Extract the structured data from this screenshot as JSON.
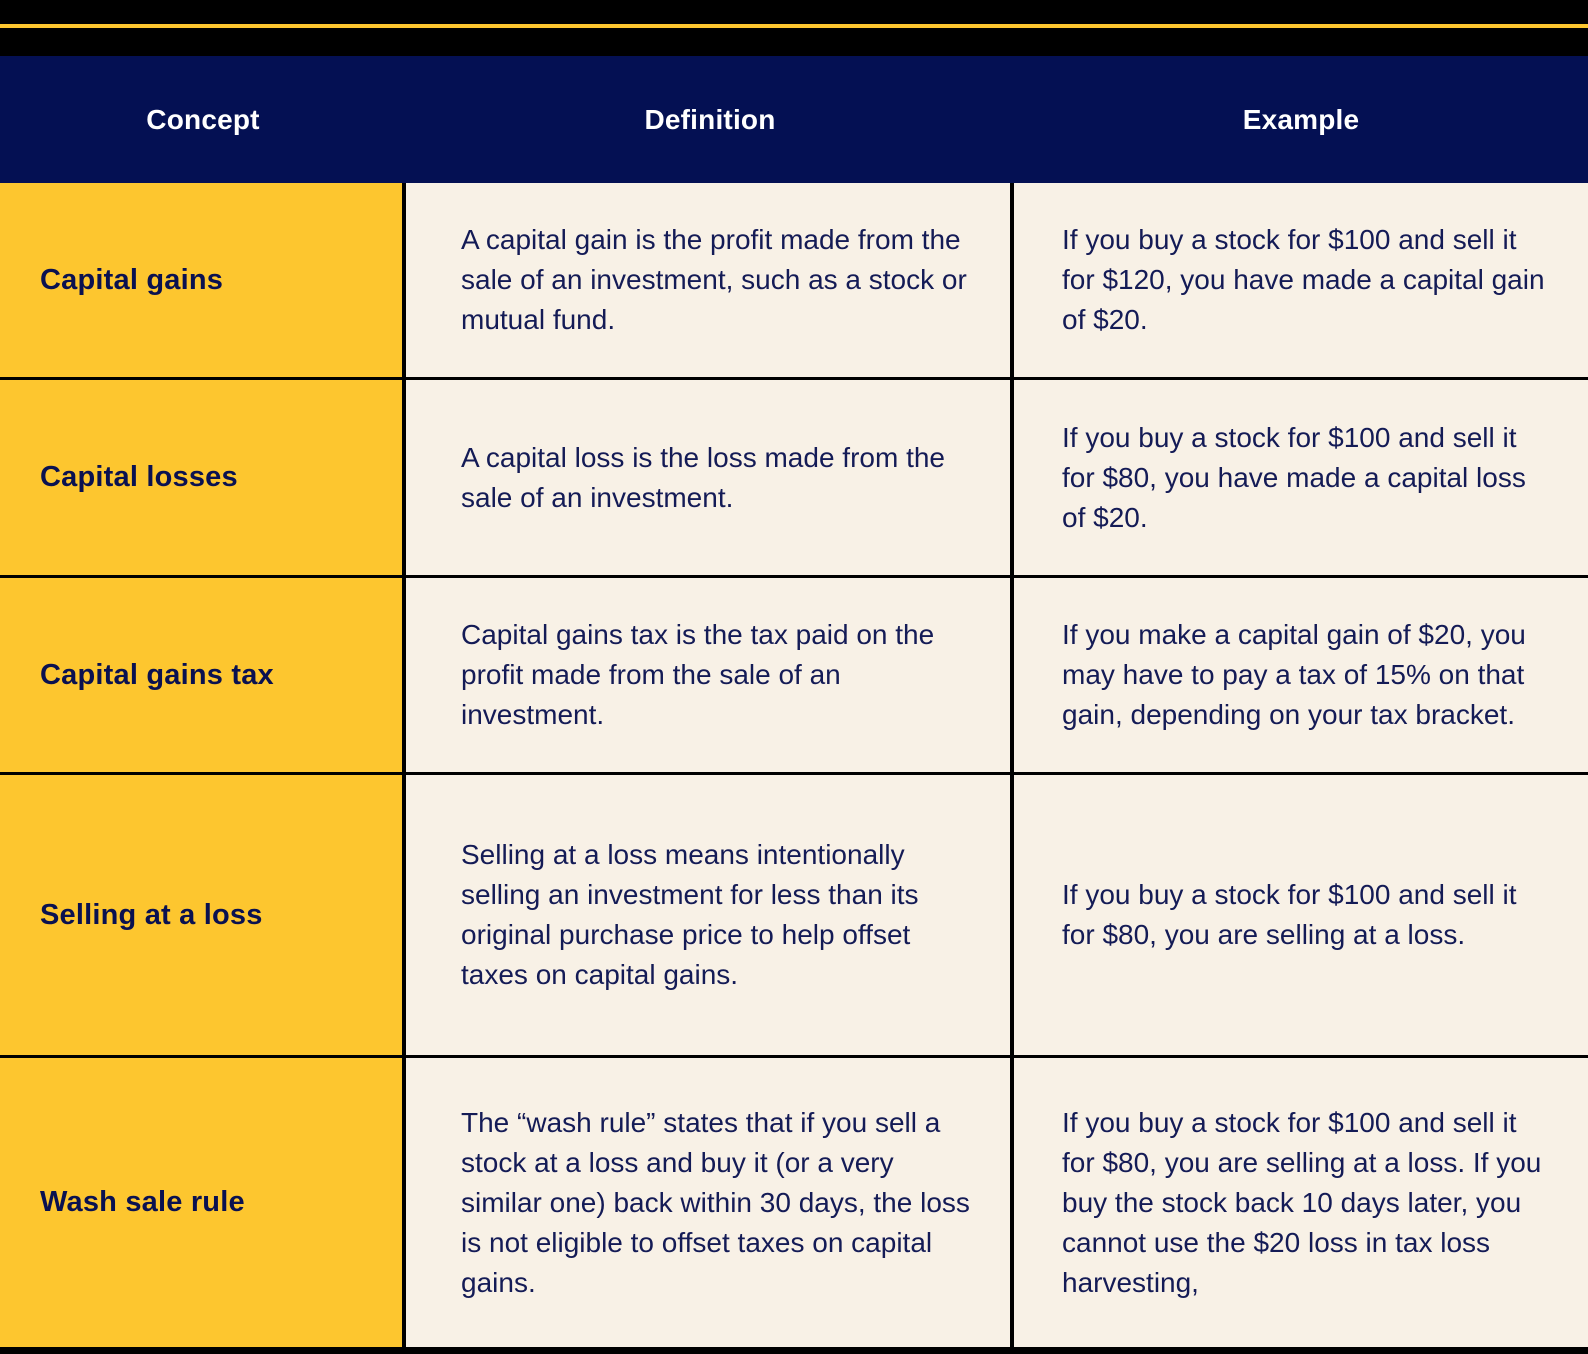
{
  "table": {
    "columns": [
      {
        "label": "Concept"
      },
      {
        "label": "Definition"
      },
      {
        "label": "Example"
      }
    ],
    "rows": [
      {
        "concept": "Capital gains",
        "definition": "A capital gain is the profit made from the sale of an investment, such as a stock or mutual fund.",
        "example": "If you buy a stock for $100 and sell it for $120, you have made a capital gain of $20."
      },
      {
        "concept": "Capital losses",
        "definition": "A capital loss is the loss made from the sale of an investment.",
        "example": "If you buy a stock for $100 and sell it for $80, you have made a capital loss of $20."
      },
      {
        "concept": "Capital gains tax",
        "definition": "Capital gains tax is the tax paid on the profit made from the sale of an investment.",
        "example": "If you make a capital gain of $20, you may have to pay a tax of 15% on that gain, depending on your tax bracket."
      },
      {
        "concept": "Selling at a loss",
        "definition": "Selling at a loss means intentionally selling an investment for less than its original purchase price to help offset taxes on capital gains.",
        "example": "If you buy a stock for $100 and sell it for $80, you are selling at a loss."
      },
      {
        "concept": "Wash sale rule",
        "definition": "The “wash rule” states that if you sell a stock at a loss and buy it (or a very similar one) back within 30 days, the loss is not eligible to offset taxes on capital gains.",
        "example": "If you buy a stock for $100 and sell it for $80, you are selling at a loss. If you buy the stock back 10 days later, you cannot use the $20 loss in tax loss harvesting,"
      }
    ]
  },
  "colors": {
    "header_bg": "#041053",
    "concept_column_bg": "#FDC62F",
    "body_bg": "#F8F1E6",
    "header_text": "#FFFFFF",
    "body_text": "#141B56",
    "concept_text": "#0A1150",
    "border": "#000000",
    "accent_stripe": "#FDC62F"
  }
}
